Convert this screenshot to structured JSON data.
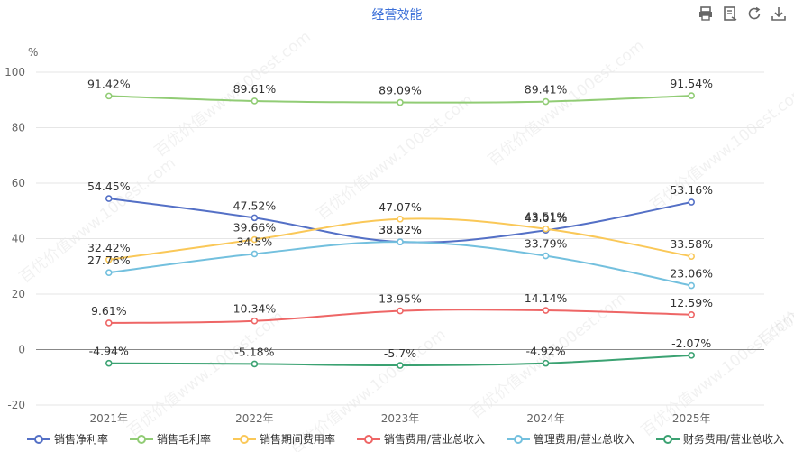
{
  "title": "经营效能",
  "toolbar": [
    {
      "name": "print-icon"
    },
    {
      "name": "data-view-icon"
    },
    {
      "name": "refresh-icon"
    },
    {
      "name": "download-icon"
    }
  ],
  "watermark": "百优价值www.100est.com",
  "chart_data": {
    "type": "line",
    "y_unit": "%",
    "categories": [
      "2021年",
      "2022年",
      "2023年",
      "2024年",
      "2025年"
    ],
    "ylim": [
      -20,
      100
    ],
    "yticks": [
      -20,
      0,
      20,
      40,
      60,
      80,
      100
    ],
    "grid": true,
    "legend_position": "bottom",
    "series": [
      {
        "name": "销售净利率",
        "color": "#5470c6",
        "values": [
          54.45,
          47.52,
          38.82,
          43.01,
          53.16
        ],
        "labels": [
          "54.45%",
          "47.52%",
          "38.82%",
          "43.01%",
          "53.16%"
        ]
      },
      {
        "name": "销售毛利率",
        "color": "#91cc75",
        "values": [
          91.42,
          89.61,
          89.09,
          89.41,
          91.54
        ],
        "labels": [
          "91.42%",
          "89.61%",
          "89.09%",
          "89.41%",
          "91.54%"
        ]
      },
      {
        "name": "销售期间费用率",
        "color": "#fac858",
        "values": [
          32.42,
          39.66,
          47.07,
          43.51,
          33.58
        ],
        "labels": [
          "32.42%",
          "39.66%",
          "47.07%",
          "43.51%",
          "33.58%"
        ]
      },
      {
        "name": "销售费用/营业总收入",
        "color": "#ee6666",
        "values": [
          9.61,
          10.34,
          13.95,
          14.14,
          12.59
        ],
        "labels": [
          "9.61%",
          "10.34%",
          "13.95%",
          "14.14%",
          "12.59%"
        ]
      },
      {
        "name": "管理费用/营业总收入",
        "color": "#73c0de",
        "values": [
          27.76,
          34.5,
          38.82,
          33.79,
          23.06
        ],
        "labels": [
          "27.76%",
          "34.5%",
          "38.82%",
          "33.79%",
          "23.06%"
        ]
      },
      {
        "name": "财务费用/营业总收入",
        "color": "#3ba272",
        "values": [
          -4.94,
          -5.18,
          -5.7,
          -4.92,
          -2.07
        ],
        "labels": [
          "-4.94%",
          "-5.18%",
          "-5.7%",
          "-4.92%",
          "-2.07%"
        ]
      }
    ]
  }
}
